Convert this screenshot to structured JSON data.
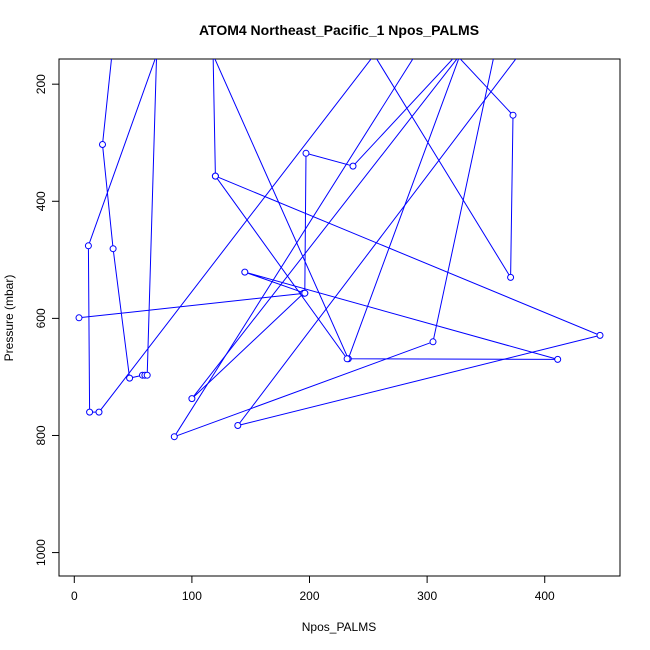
{
  "chart_data": {
    "type": "line",
    "title": "ATOM4 Northeast_Pacific_1 Npos_PALMS",
    "xlabel": "Npos_PALMS",
    "ylabel": "Pressure (mbar)",
    "xlim": [
      -13,
      464
    ],
    "ylim": [
      1040,
      157
    ],
    "y_reversed": true,
    "grid": false,
    "legend": "none",
    "x_ticks": [
      0,
      100,
      200,
      300,
      400
    ],
    "y_ticks": [
      200,
      400,
      600,
      800,
      1000
    ],
    "color": "#0000ff",
    "series": [
      {
        "x": [
          32,
          24,
          33,
          47,
          58,
          60,
          62,
          70,
          12,
          13,
          21,
          255,
          371,
          373,
          325,
          237,
          197,
          196,
          195,
          100,
          328,
          233,
          118,
          120,
          232,
          411,
          145,
          196,
          4
        ],
        "y": [
          150,
          303,
          481,
          702,
          697,
          697,
          697,
          150,
          476,
          760,
          760,
          150,
          530,
          253,
          150,
          340,
          318,
          557,
          557,
          737,
          150,
          669,
          150,
          357,
          669,
          670,
          521,
          557,
          599
        ]
      },
      {
        "x": [
          357,
          305,
          85,
          290,
          325
        ],
        "y": [
          150,
          640,
          802,
          150,
          150
        ]
      },
      {
        "x": [
          378,
          139,
          447,
          120
        ],
        "y": [
          150,
          783,
          629,
          357
        ]
      }
    ]
  }
}
